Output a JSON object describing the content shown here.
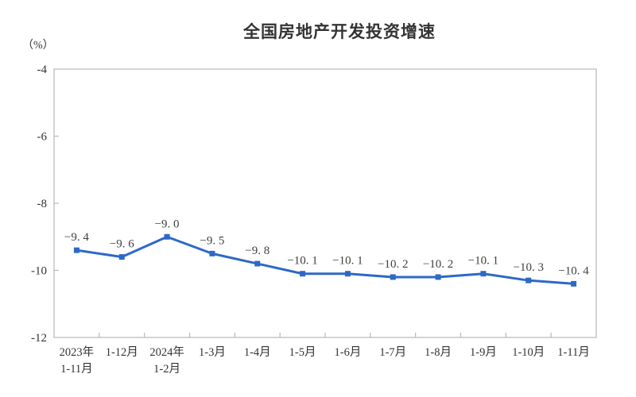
{
  "chart_data": {
    "type": "line",
    "title": "全国房地产开发投资增速",
    "unit_label": "（%）",
    "series_name": "全国房地产开发投资增速",
    "categories": [
      [
        "2023年",
        "1-11月"
      ],
      [
        "1-12月"
      ],
      [
        "2024年",
        "1-2月"
      ],
      [
        "1-3月"
      ],
      [
        "1-4月"
      ],
      [
        "1-5月"
      ],
      [
        "1-6月"
      ],
      [
        "1-7月"
      ],
      [
        "1-8月"
      ],
      [
        "1-9月"
      ],
      [
        "1-10月"
      ],
      [
        "1-11月"
      ]
    ],
    "values": [
      -9.4,
      -9.6,
      -9.0,
      -9.5,
      -9.8,
      -10.1,
      -10.1,
      -10.2,
      -10.2,
      -10.1,
      -10.3,
      -10.4
    ],
    "point_labels": [
      "−9. 4",
      "−9. 6",
      "−9. 0",
      "−9. 5",
      "−9. 8",
      "−10. 1",
      "−10. 1",
      "−10. 2",
      "−10. 2",
      "−10. 1",
      "−10. 3",
      "−10. 4"
    ],
    "yticks": [
      -4,
      -6,
      -8,
      -10,
      -12
    ],
    "ytick_labels": [
      "-4",
      "-6",
      "-8",
      "-10",
      "-12"
    ],
    "ylim": [
      -12,
      -4
    ],
    "grid": false,
    "legend_position": "none",
    "colors": {
      "line": "#2d69c6",
      "marker": "#2d69c6",
      "axis_border": "#c6c6c6",
      "tick": "#b8b8b8",
      "text": "#333333",
      "point_label_text": "#404040",
      "background": "#ffffff"
    }
  }
}
